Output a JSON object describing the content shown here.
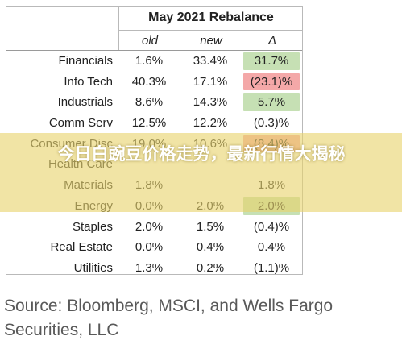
{
  "chart_data": {
    "type": "table",
    "title": "May 2021 Rebalance",
    "columns": [
      "old",
      "new",
      "Δ"
    ],
    "rows": [
      {
        "sector": "Financials",
        "old": "1.6%",
        "new": "33.4%",
        "delta": "31.7%",
        "highlight": "green"
      },
      {
        "sector": "Info Tech",
        "old": "40.3%",
        "new": "17.1%",
        "delta": "(23.1)%",
        "highlight": "red"
      },
      {
        "sector": "Industrials",
        "old": "8.6%",
        "new": "14.3%",
        "delta": "5.7%",
        "highlight": "green"
      },
      {
        "sector": "Comm Serv",
        "old": "12.5%",
        "new": "12.2%",
        "delta": "(0.3)%",
        "highlight": "none"
      },
      {
        "sector": "Consumer Disc",
        "old": "19.0%",
        "new": "10.6%",
        "delta": "(8.4)%",
        "highlight": "red"
      },
      {
        "sector": "Health Care",
        "old": "",
        "new": "",
        "delta": "",
        "highlight": "none"
      },
      {
        "sector": "Materials",
        "old": "1.8%",
        "new": "",
        "delta": "1.8%",
        "highlight": "none"
      },
      {
        "sector": "Energy",
        "old": "0.0%",
        "new": "2.0%",
        "delta": "2.0%",
        "highlight": "green"
      },
      {
        "sector": "Staples",
        "old": "2.0%",
        "new": "1.5%",
        "delta": "(0.4)%",
        "highlight": "none"
      },
      {
        "sector": "Real Estate",
        "old": "0.0%",
        "new": "0.4%",
        "delta": "0.4%",
        "highlight": "none"
      },
      {
        "sector": "Utilities",
        "old": "1.3%",
        "new": "0.2%",
        "delta": "(1.1)%",
        "highlight": "none"
      }
    ]
  },
  "source": "Source: Bloomberg, MSCI, and Wells Fargo Securities, LLC",
  "banner": {
    "text": "今日白豌豆价格走势，最新行情大揭秘"
  },
  "colors": {
    "green": "#c6e0b4",
    "red": "#f4a8a8",
    "border": "#b9b9b9",
    "banner": "#e9d46e"
  }
}
